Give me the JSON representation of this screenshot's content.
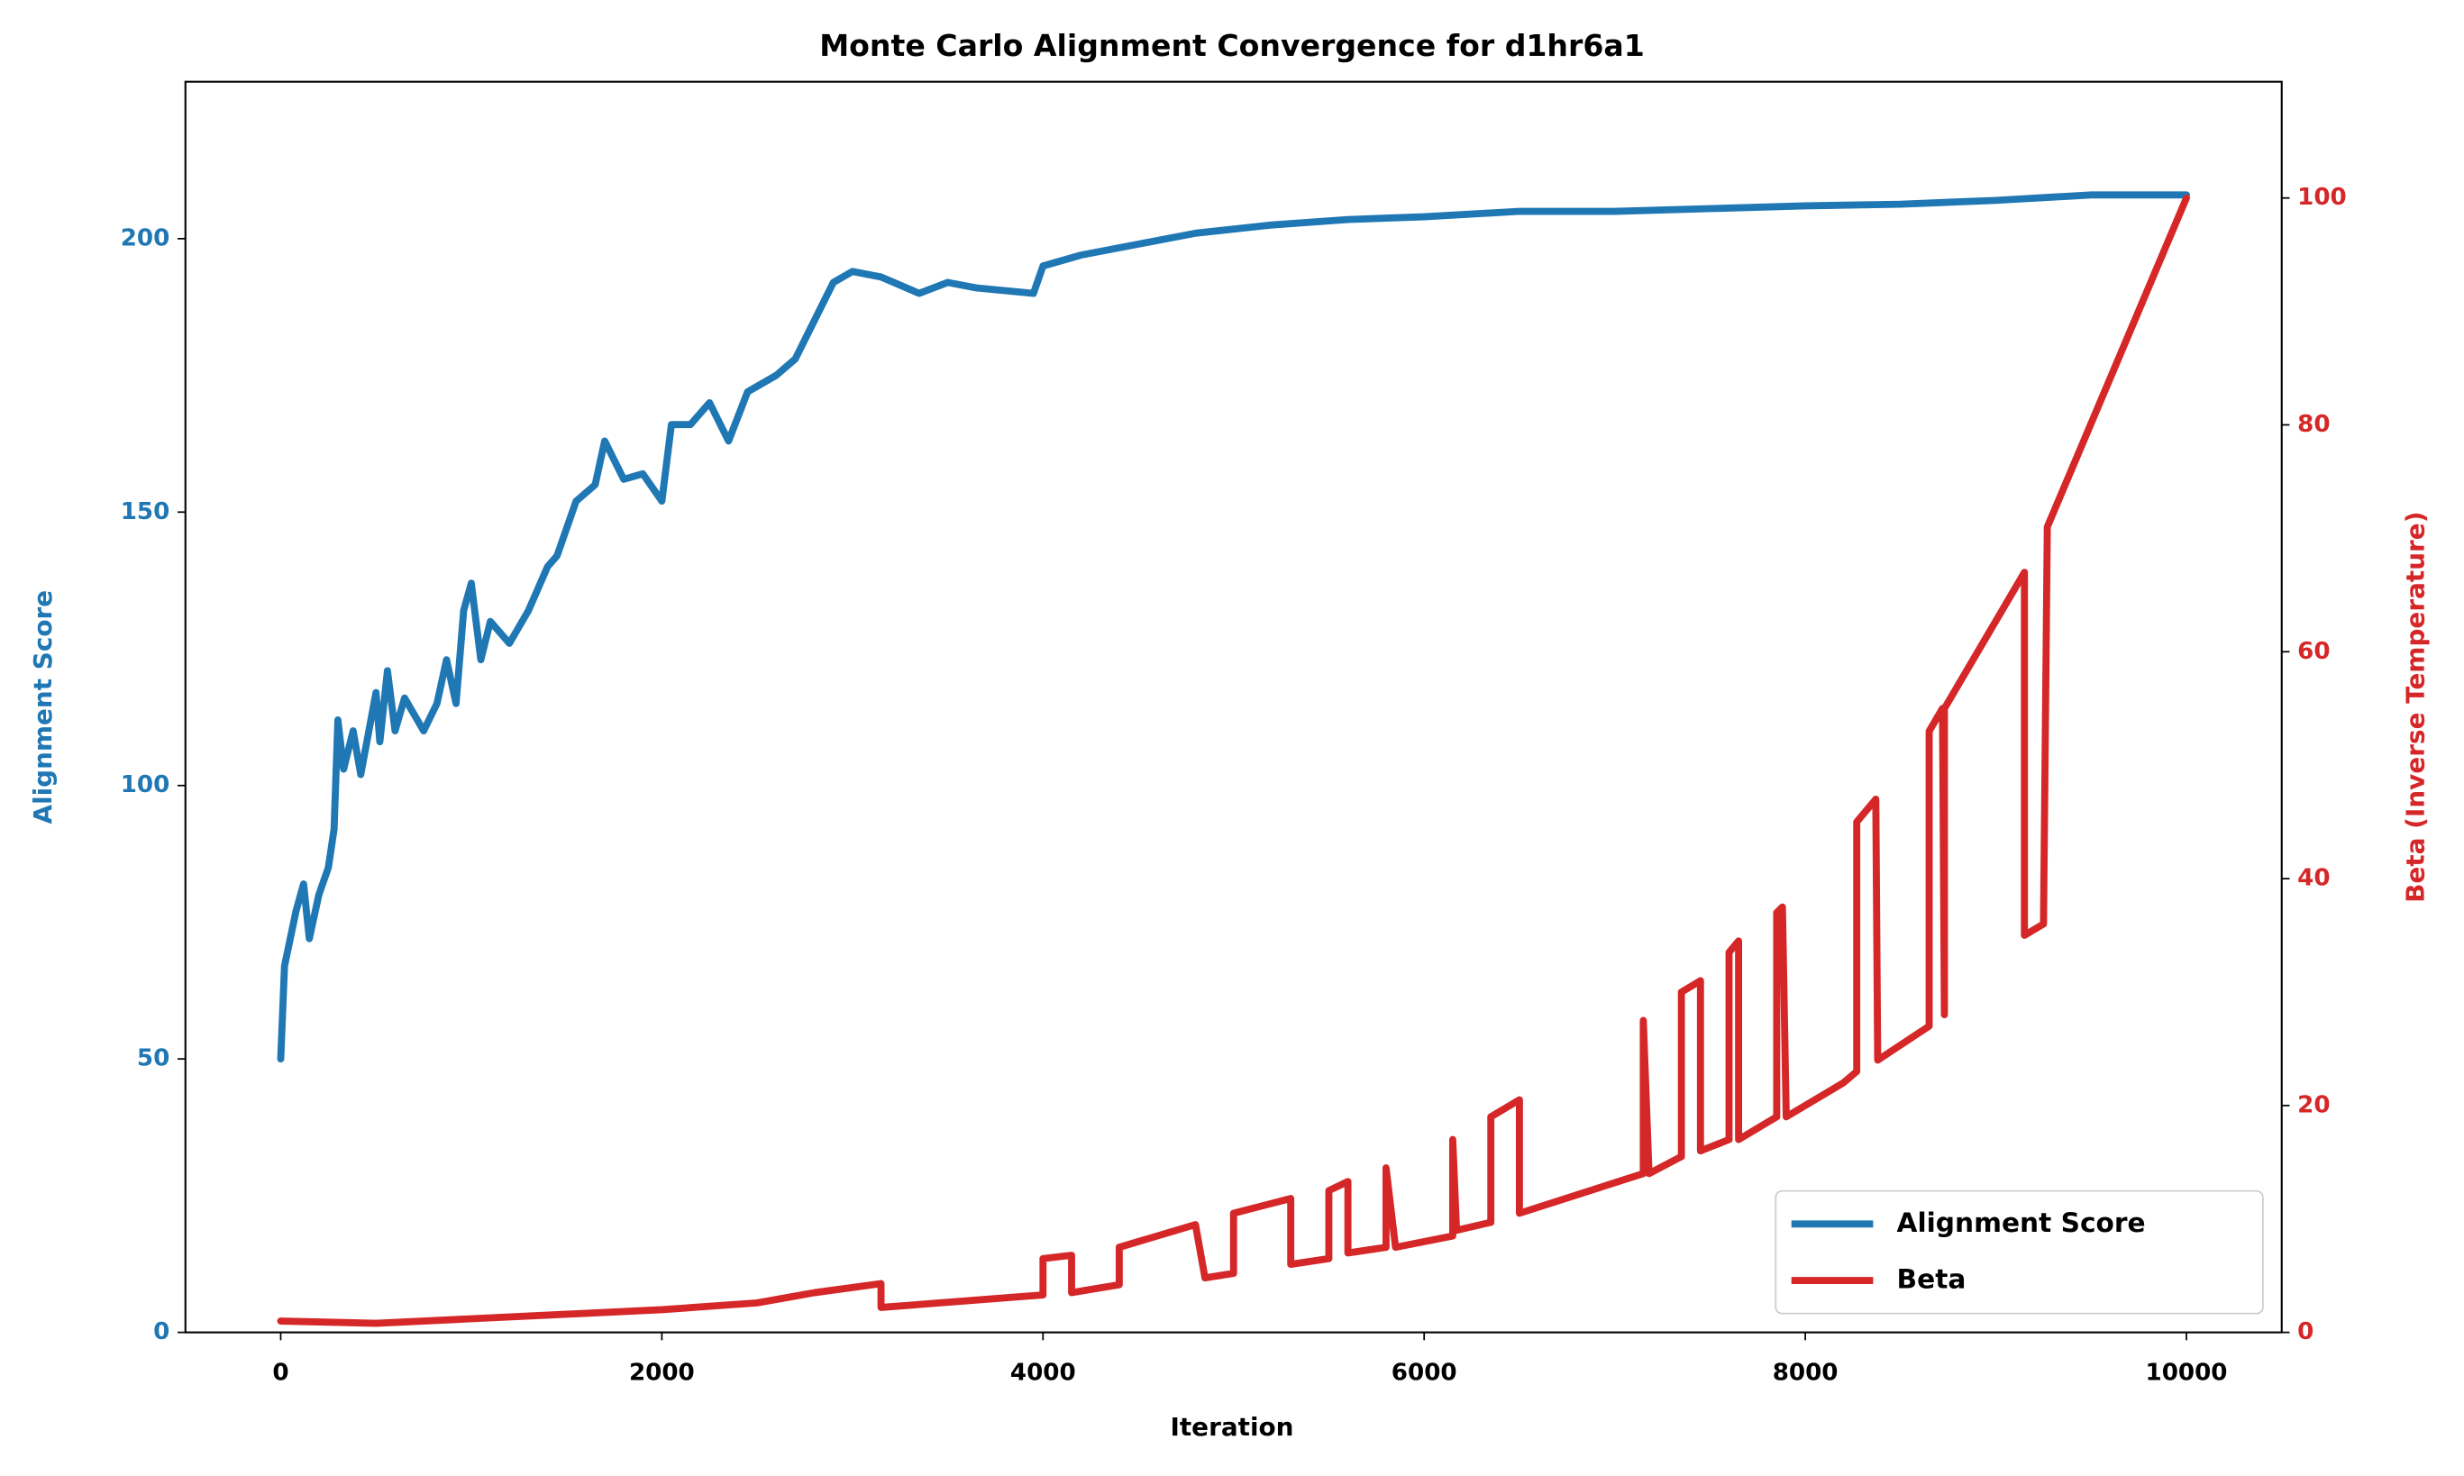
{
  "chart_data": {
    "type": "line",
    "title": "Monte Carlo Alignment Convergence for d1hr6a1",
    "x_label": "Iteration",
    "y_label": "Alignment Score",
    "y2_label": "Beta (Inverse Temperature)",
    "xlim": [
      -500,
      10500
    ],
    "xticks": [
      0,
      2000,
      4000,
      6000,
      8000,
      10000
    ],
    "ylim": [
      0,
      228.7
    ],
    "yticks": [
      0,
      50,
      100,
      150,
      200
    ],
    "y2lim": [
      0,
      110.25
    ],
    "y2ticks": [
      0,
      20,
      40,
      60,
      80,
      100
    ],
    "legend": "lower right",
    "series": [
      {
        "name": "Alignment Score",
        "color": "#1f77b4",
        "axis": "y",
        "x": [
          0,
          20,
          80,
          120,
          150,
          200,
          250,
          280,
          300,
          330,
          380,
          420,
          500,
          520,
          560,
          600,
          650,
          700,
          750,
          820,
          870,
          920,
          960,
          1000,
          1050,
          1100,
          1200,
          1300,
          1400,
          1450,
          1550,
          1650,
          1700,
          1800,
          1900,
          2000,
          2050,
          2150,
          2250,
          2350,
          2450,
          2600,
          2700,
          2800,
          2900,
          3000,
          3150,
          3350,
          3500,
          3650,
          3950,
          4000,
          4200,
          4500,
          4800,
          5200,
          5600,
          6000,
          6500,
          7000,
          7500,
          8000,
          8500,
          9000,
          9500,
          10000
        ],
        "values": [
          50,
          67,
          77,
          82,
          72,
          80,
          85,
          92,
          112,
          103,
          110,
          102,
          117,
          108,
          121,
          110,
          116,
          113,
          110,
          115,
          123,
          115,
          132,
          137,
          123,
          130,
          126,
          132,
          140,
          142,
          152,
          155,
          163,
          156,
          157,
          152,
          166,
          166,
          170,
          163,
          172,
          175,
          178,
          185,
          192,
          194,
          193,
          190,
          192,
          191,
          190,
          195,
          197,
          199,
          201,
          202.5,
          203.5,
          204,
          205,
          205,
          205.5,
          206,
          206.3,
          207,
          208,
          208
        ]
      },
      {
        "name": "Beta",
        "color": "#d62728",
        "axis": "y2",
        "x": [
          0,
          500,
          1000,
          1500,
          2000,
          2500,
          2800,
          3150,
          3150,
          4000,
          4000,
          4150,
          4150,
          4400,
          4400,
          4800,
          4850,
          5000,
          5000,
          5300,
          5300,
          5500,
          5500,
          5600,
          5600,
          5800,
          5800,
          5850,
          6150,
          6150,
          6170,
          6350,
          6350,
          6500,
          6500,
          7150,
          7150,
          7180,
          7350,
          7350,
          7450,
          7450,
          7600,
          7600,
          7650,
          7650,
          7850,
          7850,
          7880,
          7900,
          8200,
          8270,
          8270,
          8370,
          8380,
          8650,
          8650,
          8720,
          8730,
          8730,
          9150,
          9150,
          9250,
          9270,
          10000
        ],
        "values": [
          1,
          0.8,
          1.2,
          1.6,
          2,
          2.6,
          3.5,
          4.3,
          2.2,
          3.3,
          6.5,
          6.8,
          3.5,
          4.2,
          7.5,
          9.5,
          4.8,
          5.2,
          10.5,
          11.8,
          6,
          6.5,
          12.5,
          13.3,
          7,
          7.5,
          14.5,
          7.5,
          8.5,
          17,
          9,
          9.7,
          19,
          20.5,
          10.5,
          14,
          27.5,
          14,
          15.5,
          30,
          31,
          16,
          17,
          33.5,
          34.5,
          17,
          19,
          37,
          37.5,
          19,
          22,
          23,
          45,
          47,
          24,
          27,
          53,
          55,
          28,
          55,
          67,
          35,
          36,
          71,
          100
        ]
      }
    ]
  }
}
